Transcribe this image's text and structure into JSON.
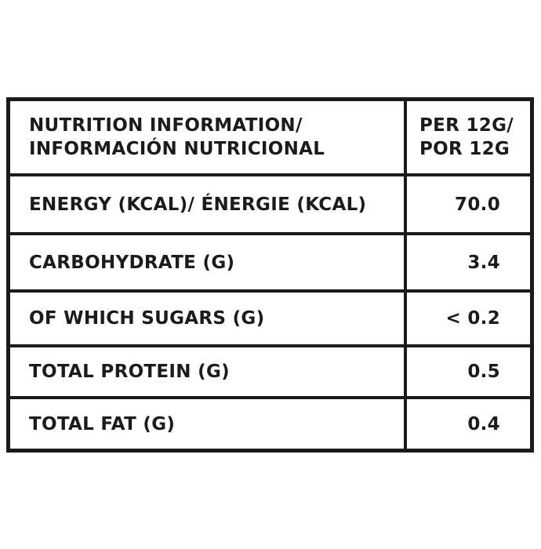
{
  "table": {
    "header": {
      "label_lines": [
        "NUTRITION INFORMATION/",
        "INFORMACIÓN NUTRICIONAL"
      ],
      "value_lines": [
        "PER 12G/",
        "POR 12G"
      ]
    },
    "rows": [
      {
        "label": "ENERGY (KCAL)/ ÉNERGIE (KCAL)",
        "value": "70.0"
      },
      {
        "label": "CARBOHYDRATE (G)",
        "value": "3.4"
      },
      {
        "label": "OF WHICH SUGARS (G)",
        "value": "< 0.2"
      },
      {
        "label": "TOTAL PROTEIN (G)",
        "value": "0.5"
      },
      {
        "label": "TOTAL FAT (G)",
        "value": "0.4"
      }
    ]
  }
}
